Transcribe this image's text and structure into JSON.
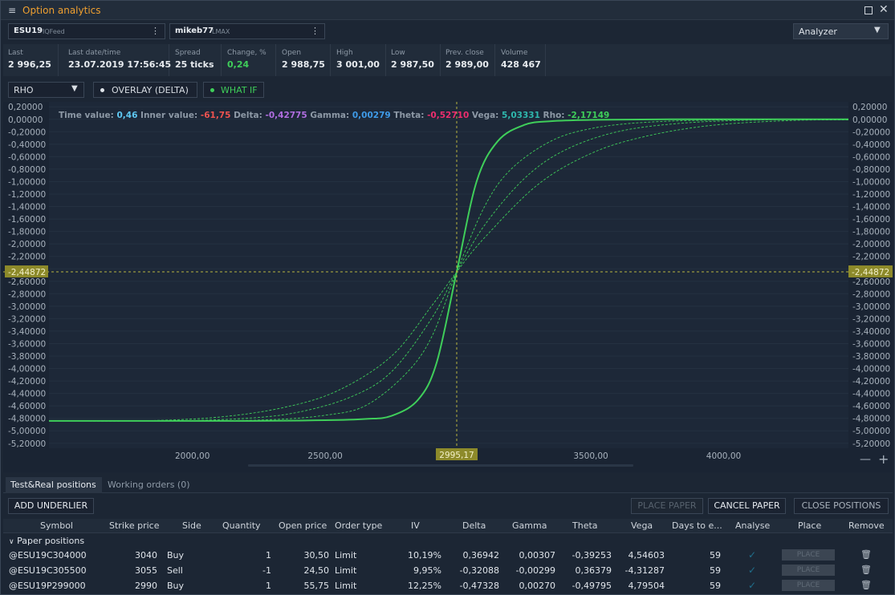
{
  "window": {
    "menu_icon": "≡",
    "title": "Option analytics",
    "maximize_icon": "window-maximize-icon",
    "close_glyph": "✕"
  },
  "selectors": [
    {
      "symbol": "ESU19",
      "feed": "IQFeed"
    },
    {
      "symbol": "mikeb77",
      "feed": "LMAX"
    }
  ],
  "analyzer": {
    "value": "Analyzer"
  },
  "quotes": [
    {
      "label": "Last",
      "value": "2 996,25"
    },
    {
      "label": "Last date/time",
      "value": "23.07.2019 17:56:45"
    },
    {
      "label": "Spread",
      "value": "25 ticks"
    },
    {
      "label": "Change, %",
      "value": "0,24"
    },
    {
      "label": "Open",
      "value": "2 988,75"
    },
    {
      "label": "High",
      "value": "3 001,00"
    },
    {
      "label": "Low",
      "value": "2 987,50"
    },
    {
      "label": "Prev. close",
      "value": "2 989,00"
    },
    {
      "label": "Volume",
      "value": "428 467"
    }
  ],
  "toolbar": {
    "greek": "RHO",
    "overlay": "OVERLAY (DELTA)",
    "whatif": "WHAT IF"
  },
  "info_bar": [
    {
      "label": "Time value:",
      "value": "0,46",
      "color": "#5ec8f2"
    },
    {
      "label": "Inner value:",
      "value": "-61,75",
      "color": "#ef5350"
    },
    {
      "label": "Delta:",
      "value": "-0,42775",
      "color": "#b06ee0"
    },
    {
      "label": "Gamma:",
      "value": "0,00279",
      "color": "#3f9be8"
    },
    {
      "label": "Theta:",
      "value": "-0,52710",
      "color": "#ec2e6e"
    },
    {
      "label": "Vega:",
      "value": "5,03331",
      "color": "#2fb8ae"
    },
    {
      "label": "Rho:",
      "value": "-2,17149",
      "color": "#3fce5a"
    }
  ],
  "chart_data": {
    "type": "line",
    "xlim": [
      1460,
      4470
    ],
    "ylim": [
      -5.28,
      0.28
    ],
    "y_ticks": [
      "0,20000",
      "0,00000",
      "-0,20000",
      "-0,40000",
      "-0,60000",
      "-0,80000",
      "-1,00000",
      "-1,20000",
      "-1,40000",
      "-1,60000",
      "-1,80000",
      "-2,00000",
      "-2,20000",
      "-2,40000",
      "-2,60000",
      "-2,80000",
      "-3,00000",
      "-3,20000",
      "-3,40000",
      "-3,60000",
      "-3,80000",
      "-4,00000",
      "-4,20000",
      "-4,40000",
      "-4,60000",
      "-4,80000",
      "-5,00000",
      "-5,20000"
    ],
    "y_tick_values": [
      0.2,
      0,
      -0.2,
      -0.4,
      -0.6,
      -0.8,
      -1.0,
      -1.2,
      -1.4,
      -1.6,
      -1.8,
      -2.0,
      -2.2,
      -2.4,
      -2.6,
      -2.8,
      -3.0,
      -3.2,
      -3.4,
      -3.6,
      -3.8,
      -4.0,
      -4.2,
      -4.4,
      -4.6,
      -4.8,
      -5.0,
      -5.2
    ],
    "x_ticks": [
      "2000,00",
      "2500,00",
      "3500,00",
      "4000,00"
    ],
    "x_tick_values": [
      2000,
      2500,
      3500,
      4000
    ],
    "crosshair": {
      "x": 2995.17,
      "y": -2.44872,
      "x_label": "2995,17",
      "y_label": "-2,44872"
    },
    "series": [
      {
        "style": "solid",
        "x": [
          1460,
          2200,
          2500,
          2650,
          2750,
          2850,
          2920,
          2995,
          3070,
          3150,
          3250,
          3350,
          3500,
          3800,
          4470
        ],
        "values": [
          -4.84,
          -4.84,
          -4.83,
          -4.81,
          -4.76,
          -4.5,
          -3.9,
          -2.45,
          -1.0,
          -0.35,
          -0.09,
          -0.03,
          -0.01,
          0,
          0
        ]
      },
      {
        "style": "dashed",
        "x": [
          1460,
          2000,
          2300,
          2500,
          2650,
          2800,
          2900,
          2995,
          3100,
          3200,
          3350,
          3500,
          3700,
          4000,
          4470
        ],
        "values": [
          -4.84,
          -4.84,
          -4.82,
          -4.75,
          -4.6,
          -4.1,
          -3.5,
          -2.45,
          -1.4,
          -0.8,
          -0.35,
          -0.15,
          -0.05,
          -0.01,
          0
        ]
      },
      {
        "style": "dashed",
        "x": [
          1460,
          1900,
          2200,
          2400,
          2600,
          2750,
          2900,
          2995,
          3100,
          3250,
          3400,
          3600,
          3850,
          4150,
          4470
        ],
        "values": [
          -4.84,
          -4.84,
          -4.8,
          -4.7,
          -4.45,
          -4.05,
          -3.2,
          -2.45,
          -1.7,
          -0.95,
          -0.5,
          -0.2,
          -0.06,
          -0.01,
          0
        ]
      },
      {
        "style": "dashed",
        "x": [
          1460,
          1800,
          2100,
          2350,
          2550,
          2750,
          2900,
          2995,
          3100,
          3300,
          3500,
          3700,
          3950,
          4250,
          4470
        ],
        "values": [
          -4.84,
          -4.84,
          -4.78,
          -4.62,
          -4.35,
          -3.8,
          -3.0,
          -2.45,
          -1.9,
          -1.05,
          -0.55,
          -0.28,
          -0.1,
          -0.02,
          -0.01
        ]
      }
    ],
    "line_color": "#3fce5a"
  },
  "tabs": [
    {
      "label": "Test&Real positions"
    },
    {
      "label": "Working orders (0)"
    }
  ],
  "actions": {
    "add_underlier": "ADD UNDERLIER",
    "place_paper": "PLACE PAPER",
    "cancel_paper": "CANCEL PAPER",
    "close_positions": "CLOSE POSITIONS"
  },
  "table": {
    "headers": [
      "Symbol",
      "Strike price",
      "Side",
      "Quantity",
      "Open price",
      "Order type",
      "IV",
      "Delta",
      "Gamma",
      "Theta",
      "Vega",
      "Days to e...",
      "Analyse",
      "Place",
      "Remove"
    ],
    "group_label": "Paper positions",
    "place_label": "PLACE",
    "rows": [
      {
        "symbol": "@ESU19C304000",
        "strike": "3040",
        "side": "Buy",
        "qty": "1",
        "open": "30,50",
        "type": "Limit",
        "iv": "10,19%",
        "delta": "0,36942",
        "gamma": "0,00307",
        "theta": "-0,39253",
        "vega": "4,54603",
        "days": "59"
      },
      {
        "symbol": "@ESU19C305500",
        "strike": "3055",
        "side": "Sell",
        "qty": "-1",
        "open": "24,50",
        "type": "Limit",
        "iv": "9,95%",
        "delta": "-0,32088",
        "gamma": "-0,00299",
        "theta": "0,36379",
        "vega": "-4,31287",
        "days": "59"
      },
      {
        "symbol": "@ESU19P299000",
        "strike": "2990",
        "side": "Buy",
        "qty": "1",
        "open": "55,75",
        "type": "Limit",
        "iv": "12,25%",
        "delta": "-0,47328",
        "gamma": "0,00270",
        "theta": "-0,49795",
        "vega": "4,79504",
        "days": "59"
      }
    ]
  }
}
